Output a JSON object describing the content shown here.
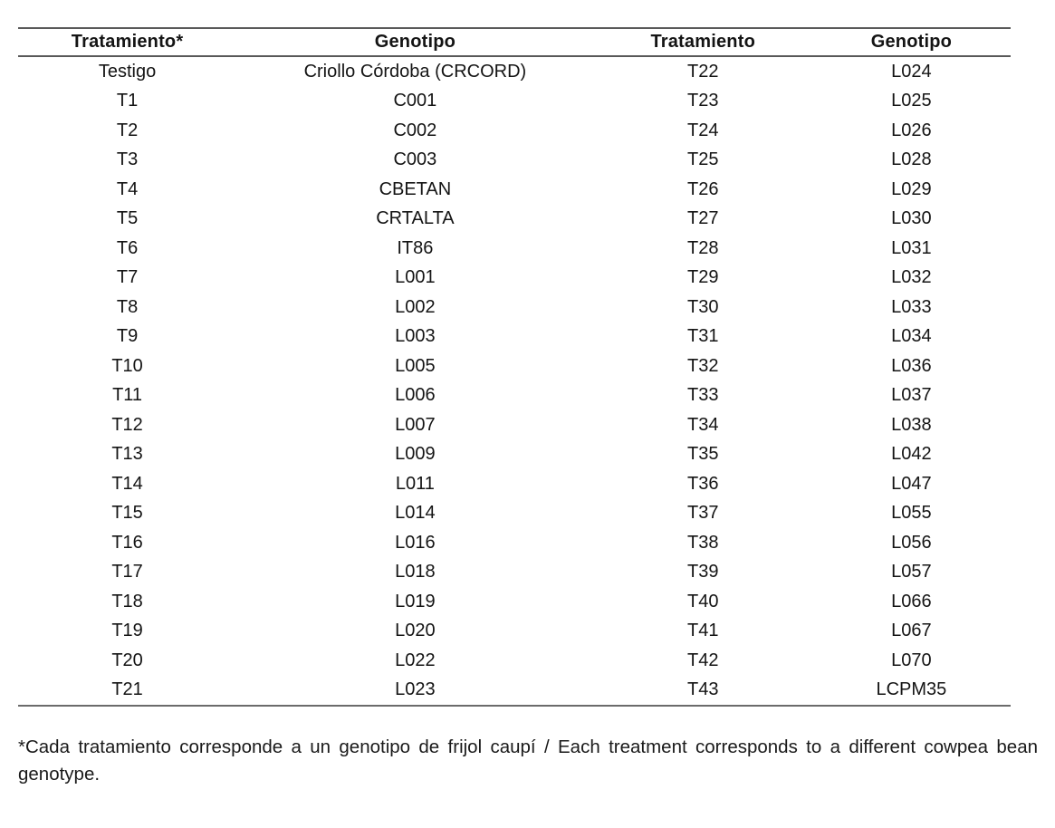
{
  "table": {
    "headers": [
      "Tratamiento*",
      "Genotipo",
      "Tratamiento",
      "Genotipo"
    ],
    "rows": [
      [
        "Testigo",
        "Criollo Córdoba (CRCORD)",
        "T22",
        "L024"
      ],
      [
        "T1",
        "C001",
        "T23",
        "L025"
      ],
      [
        "T2",
        "C002",
        "T24",
        "L026"
      ],
      [
        "T3",
        "C003",
        "T25",
        "L028"
      ],
      [
        "T4",
        "CBETAN",
        "T26",
        "L029"
      ],
      [
        "T5",
        "CRTALTA",
        "T27",
        "L030"
      ],
      [
        "T6",
        "IT86",
        "T28",
        "L031"
      ],
      [
        "T7",
        "L001",
        "T29",
        "L032"
      ],
      [
        "T8",
        "L002",
        "T30",
        "L033"
      ],
      [
        "T9",
        "L003",
        "T31",
        "L034"
      ],
      [
        "T10",
        "L005",
        "T32",
        "L036"
      ],
      [
        "T11",
        "L006",
        "T33",
        "L037"
      ],
      [
        "T12",
        "L007",
        "T34",
        "L038"
      ],
      [
        "T13",
        "L009",
        "T35",
        "L042"
      ],
      [
        "T14",
        "L011",
        "T36",
        "L047"
      ],
      [
        "T15",
        "L014",
        "T37",
        "L055"
      ],
      [
        "T16",
        "L016",
        "T38",
        "L056"
      ],
      [
        "T17",
        "L018",
        "T39",
        "L057"
      ],
      [
        "T18",
        "L019",
        "T40",
        "L066"
      ],
      [
        "T19",
        "L020",
        "T41",
        "L067"
      ],
      [
        "T20",
        "L022",
        "T42",
        "L070"
      ],
      [
        "T21",
        "L023",
        "T43",
        "LCPM35"
      ]
    ]
  },
  "footnote": "*Cada tratamiento corresponde a un genotipo de frijol caupí / Each treatment corresponds to a different cowpea bean genotype.",
  "colors": {
    "rule": "#595959",
    "text": "#141414",
    "background": "#ffffff"
  }
}
